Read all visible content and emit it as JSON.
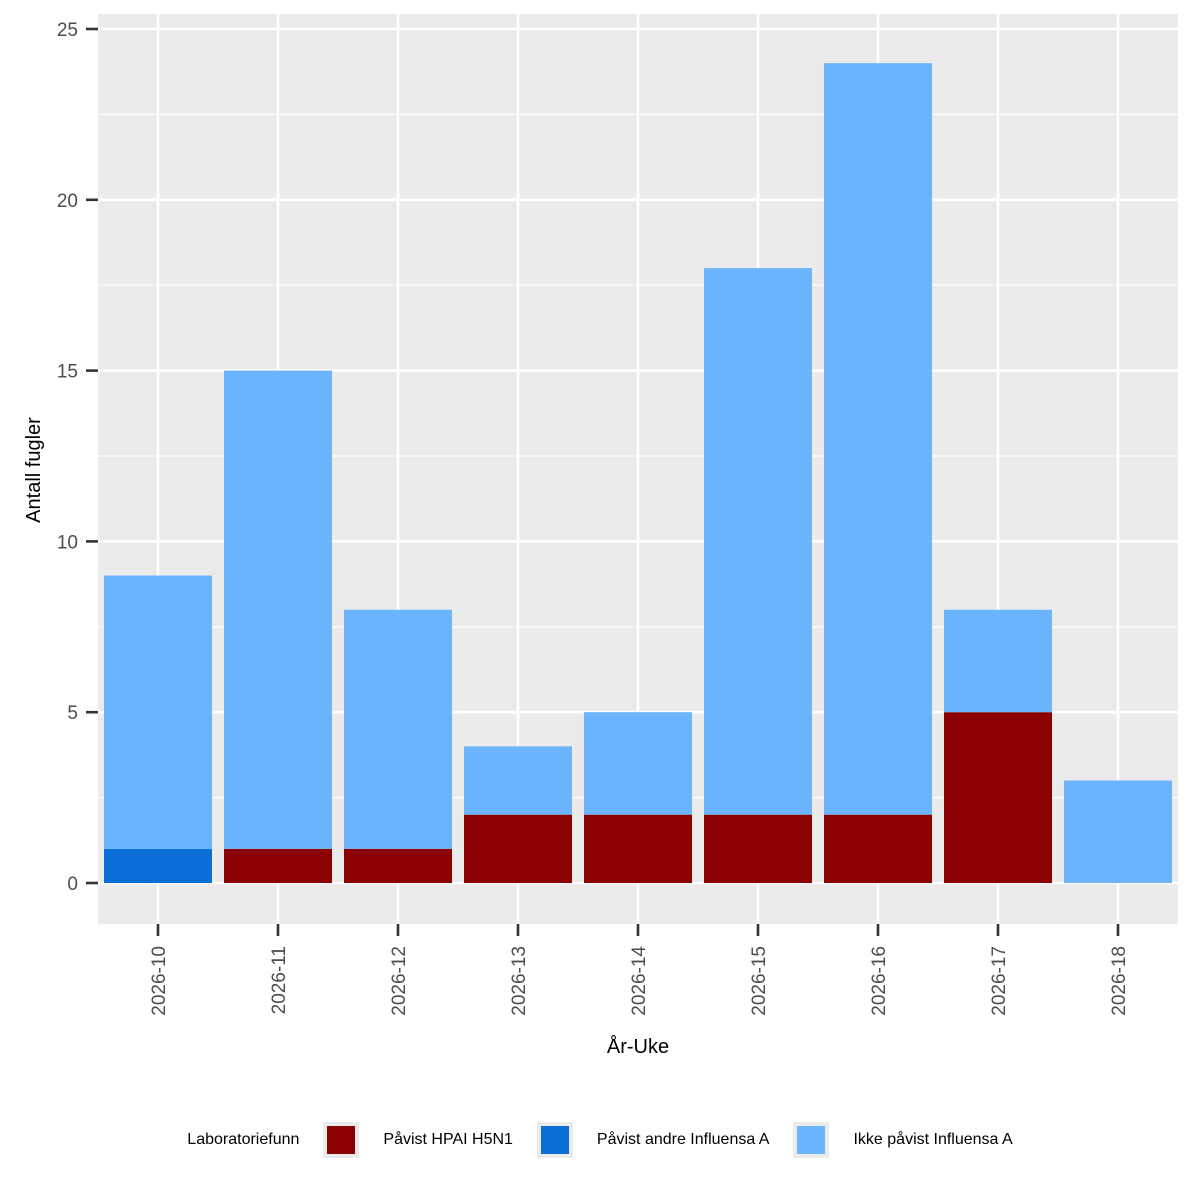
{
  "chart_data": {
    "type": "bar",
    "stacked": true,
    "title": "",
    "xlabel": "År-Uke",
    "ylabel": "Antall fugler",
    "ylim": [
      0,
      25
    ],
    "y_ticks": [
      0,
      5,
      10,
      15,
      20,
      25
    ],
    "grid": true,
    "categories": [
      "2026-10",
      "2026-11",
      "2026-12",
      "2026-13",
      "2026-14",
      "2026-15",
      "2026-16",
      "2026-17",
      "2026-18"
    ],
    "series": [
      {
        "name": "Påvist HPAI H5N1",
        "color": "#8b0000",
        "values": [
          0,
          1,
          1,
          2,
          2,
          2,
          2,
          5,
          0
        ]
      },
      {
        "name": "Påvist andre Influensa A",
        "color": "#0a6ed6",
        "values": [
          1,
          0,
          0,
          0,
          0,
          0,
          0,
          0,
          0
        ]
      },
      {
        "name": "Ikke påvist Influensa A",
        "color": "#6cb4fd",
        "values": [
          8,
          14,
          7,
          2,
          3,
          16,
          22,
          3,
          3
        ]
      }
    ],
    "legend": {
      "title": "Laboratoriefunn",
      "position": "bottom"
    }
  }
}
